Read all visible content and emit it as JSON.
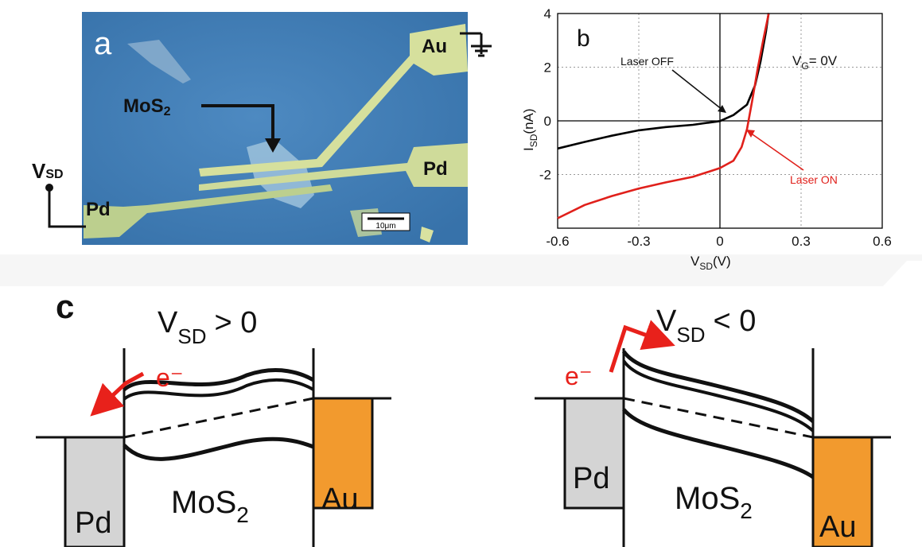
{
  "panel_a": {
    "label": "a",
    "v_sd": "V",
    "v_sd_sub": "SD",
    "pd_left": "Pd",
    "pd_right": "Pd",
    "au": "Au",
    "mos2": "MoS",
    "mos2_sub": "2",
    "scale": "10μm",
    "colors": {
      "substrate": "#3f7fb8",
      "electrode": "#d9e2a0",
      "flake": "#9fbfd9"
    }
  },
  "panel_b": {
    "label": "b",
    "vg_text": "V",
    "vg_sub": "G",
    "vg_rest": "= 0V",
    "laser_off": "Laser OFF",
    "laser_on": "Laser ON",
    "xlabel_main": "V",
    "xlabel_sub": "SD",
    "xlabel_unit": "(V)",
    "ylabel_main": "I",
    "ylabel_sub": "SD",
    "ylabel_unit": "(nA)"
  },
  "chart_data": {
    "type": "line",
    "xlim": [
      -0.6,
      0.6
    ],
    "ylim": [
      -4,
      4
    ],
    "x_ticks": [
      "-0.6",
      "-0.3",
      "0",
      "0.3",
      "0.6"
    ],
    "y_ticks": [
      "4",
      "2",
      "0",
      "-2"
    ],
    "grid": true,
    "series": [
      {
        "name": "Laser OFF",
        "color": "#000000",
        "x": [
          -0.6,
          -0.5,
          -0.4,
          -0.3,
          -0.2,
          -0.1,
          0.0,
          0.05,
          0.1,
          0.13,
          0.15,
          0.17,
          0.18
        ],
        "y": [
          -1.0,
          -0.75,
          -0.55,
          -0.38,
          -0.24,
          -0.11,
          0.0,
          0.2,
          0.6,
          1.3,
          2.2,
          3.3,
          4.0
        ]
      },
      {
        "name": "Laser ON",
        "color": "#e0201b",
        "x": [
          -0.6,
          -0.5,
          -0.4,
          -0.3,
          -0.2,
          -0.1,
          0.0,
          0.05,
          0.08,
          0.1,
          0.12,
          0.14,
          0.16,
          0.18
        ],
        "y": [
          -3.6,
          -3.1,
          -2.8,
          -2.55,
          -2.3,
          -2.05,
          -1.75,
          -1.5,
          -1.0,
          -0.3,
          0.8,
          2.0,
          3.0,
          4.0
        ]
      }
    ]
  },
  "panel_c": {
    "label": "c",
    "left": {
      "cond_main": "V",
      "cond_sub": "SD",
      "cond_rest": "> 0",
      "electron": "e⁻",
      "pd": "Pd",
      "au": "Au",
      "mos2": "MoS",
      "mos2_sub": "2"
    },
    "right": {
      "cond_main": "V",
      "cond_sub": "SD",
      "cond_rest": "< 0",
      "electron": "e⁻",
      "pd": "Pd",
      "au": "Au",
      "mos2": "MoS",
      "mos2_sub": "2"
    },
    "colors": {
      "pd": "#d4d4d4",
      "au": "#f29a2e",
      "arrow": "#e8211b"
    }
  }
}
